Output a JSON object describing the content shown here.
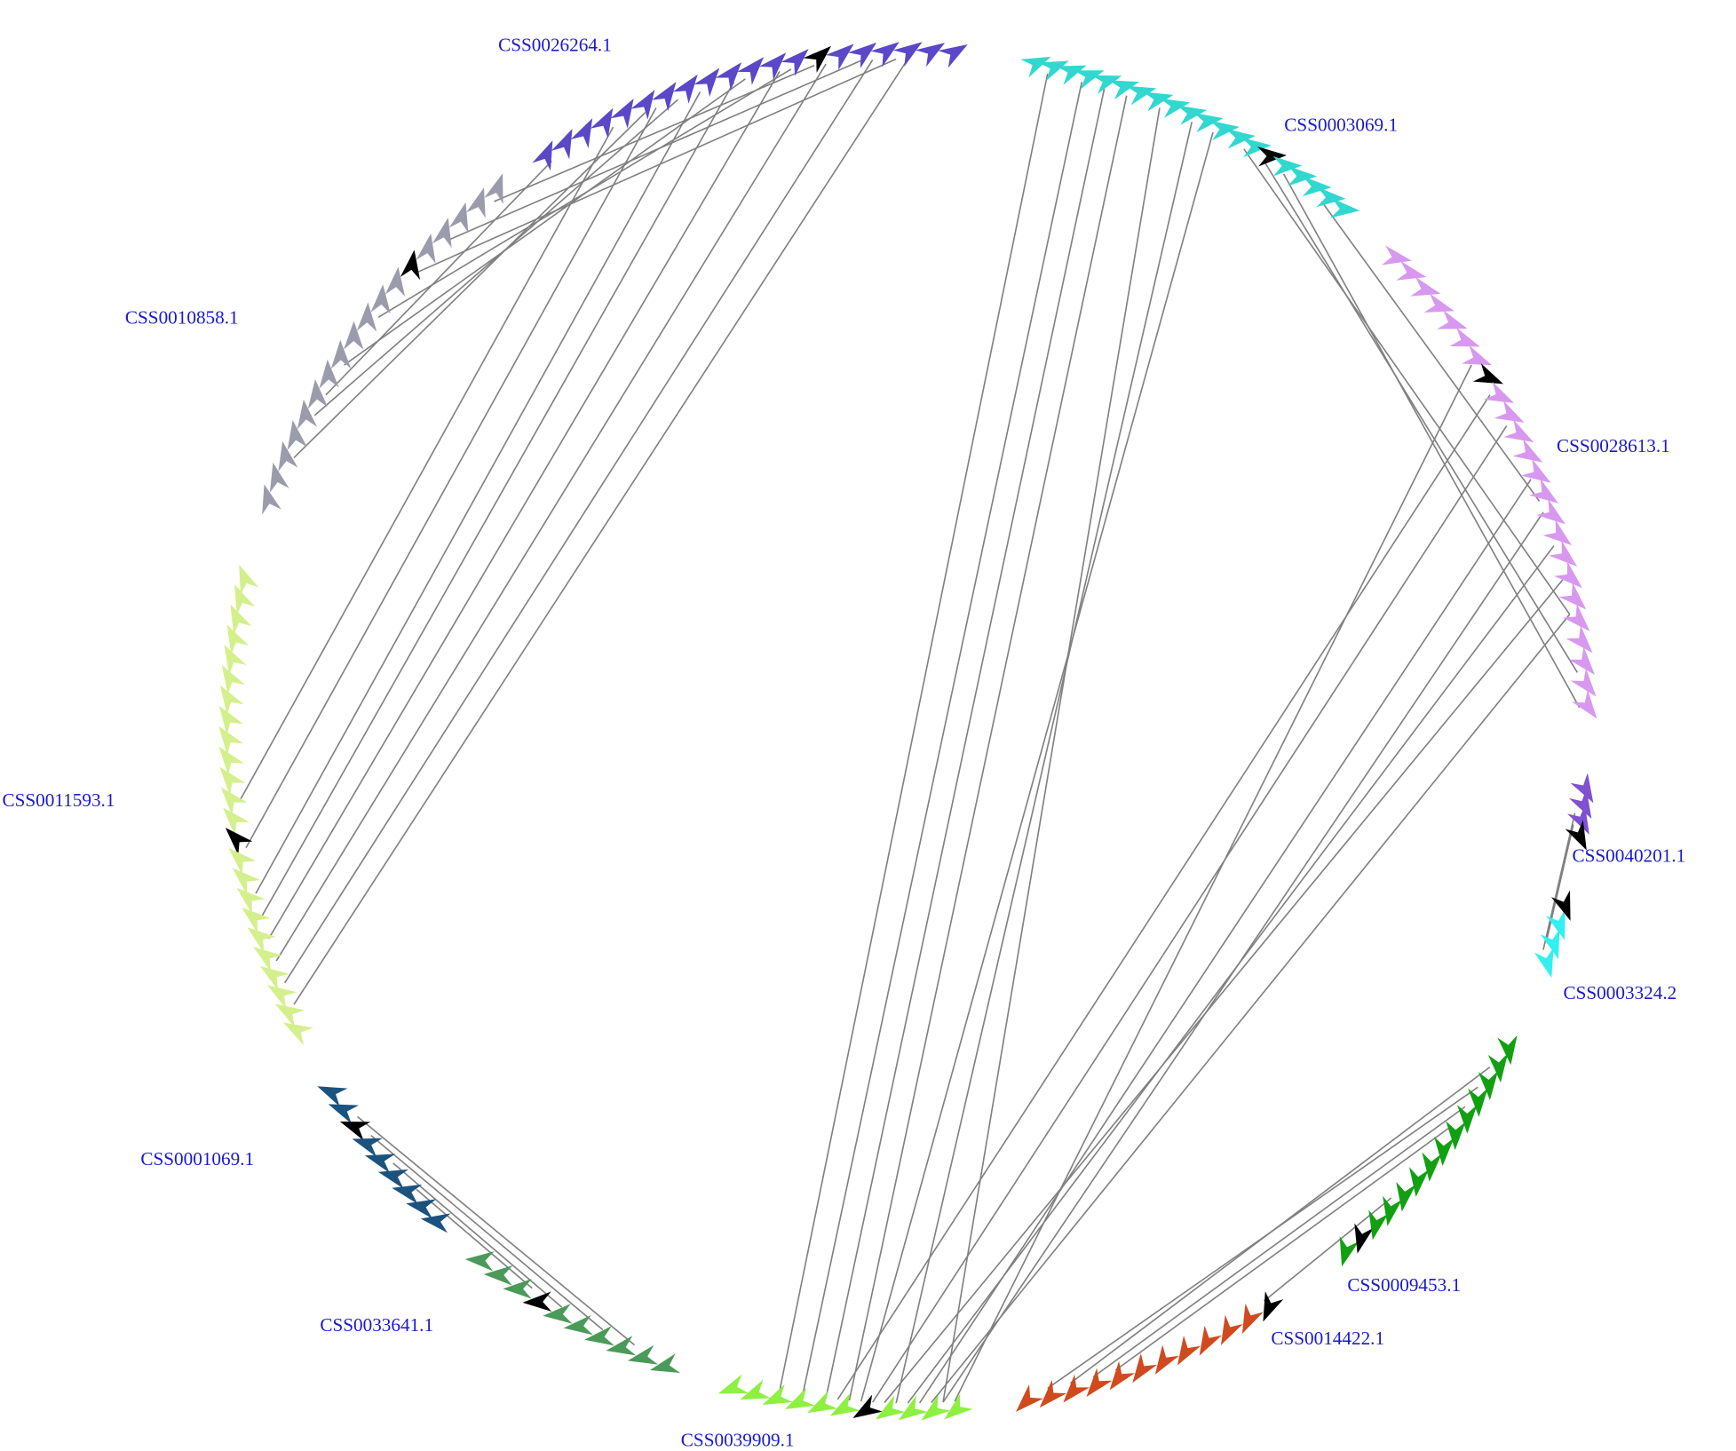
{
  "genes": [
    "CSS0026264.1",
    "CSS0003069.1",
    "CSS0010858.1",
    "CSS0028613.1",
    "CSS0011593.1",
    "CSS0040201.1",
    "CSS0003324.2",
    "CSS0001069.1",
    "CSS0009453.1",
    "CSS0014422.1",
    "CSS0033641.1",
    "CSS0039909.1"
  ]
}
